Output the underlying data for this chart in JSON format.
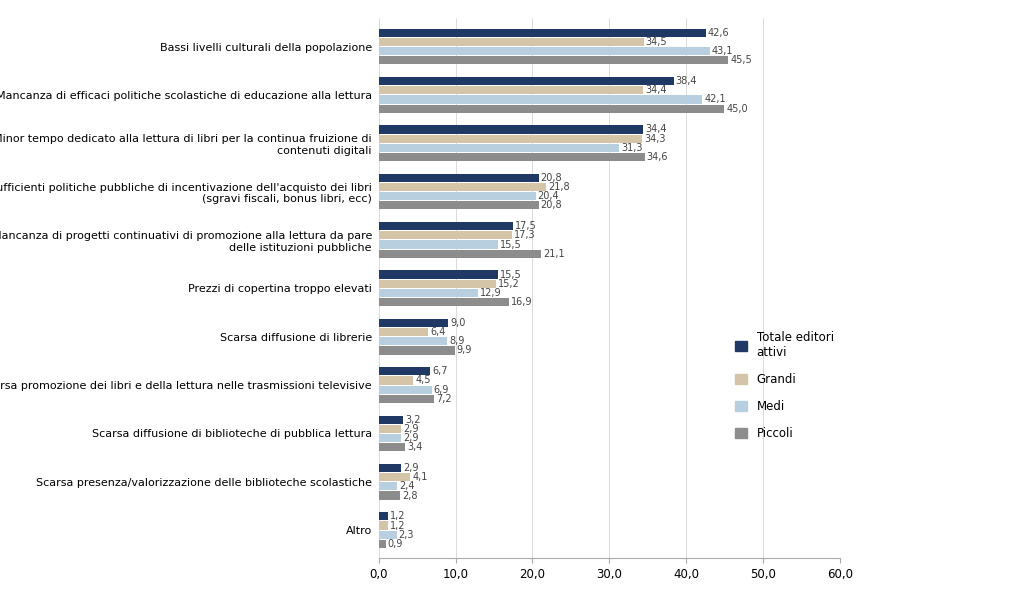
{
  "categories": [
    "Bassi livelli culturali della popolazione",
    "Mancanza di efficaci politiche scolastiche di educazione alla lettura",
    "Minor tempo dedicato alla lettura di libri per la continua fruizione di\ncontenuti digitali",
    "Insufficienti politiche pubbliche di incentivazione dell'acquisto dei libri\n(sgravi fiscali, bonus libri, ecc)",
    "Mancanza di progetti continuativi di promozione alla lettura da pare\ndelle istituzioni pubbliche",
    "Prezzi di copertina troppo elevati",
    "Scarsa diffusione di librerie",
    "Scarsa promozione dei libri e della lettura nelle trasmissioni televisive",
    "Scarsa diffusione di biblioteche di pubblica lettura",
    "Scarsa presenza/valorizzazione delle biblioteche scolastiche",
    "Altro"
  ],
  "series": {
    "Totale editori\nattivi": [
      42.6,
      38.4,
      34.4,
      20.8,
      17.5,
      15.5,
      9.0,
      6.7,
      3.2,
      2.9,
      1.2
    ],
    "Grandi": [
      34.5,
      34.4,
      34.3,
      21.8,
      17.3,
      15.2,
      6.4,
      4.5,
      2.9,
      4.1,
      1.2
    ],
    "Medi": [
      43.1,
      42.1,
      31.3,
      20.4,
      15.5,
      12.9,
      8.9,
      6.9,
      2.9,
      2.4,
      2.3
    ],
    "Piccoli": [
      45.5,
      45.0,
      34.6,
      20.8,
      21.1,
      16.9,
      9.9,
      7.2,
      3.4,
      2.8,
      0.9
    ]
  },
  "series_order_top_to_bottom": [
    "Totale editori\nattivi",
    "Grandi",
    "Medi",
    "Piccoli"
  ],
  "colors": {
    "Totale editori\nattivi": "#1f3864",
    "Grandi": "#d4c5a9",
    "Medi": "#b8cfe0",
    "Piccoli": "#8c8c8c"
  },
  "xlim": [
    0,
    60
  ],
  "xticks": [
    0,
    10,
    20,
    30,
    40,
    50,
    60
  ],
  "xticklabels": [
    "0,0",
    "10,0",
    "20,0",
    "30,0",
    "40,0",
    "50,0",
    "60,0"
  ],
  "bar_height": 0.17,
  "figsize": [
    10.24,
    6.07
  ],
  "dpi": 100,
  "label_fontsize": 7.0,
  "ytick_fontsize": 8.0,
  "xtick_fontsize": 8.5,
  "legend_fontsize": 8.5
}
